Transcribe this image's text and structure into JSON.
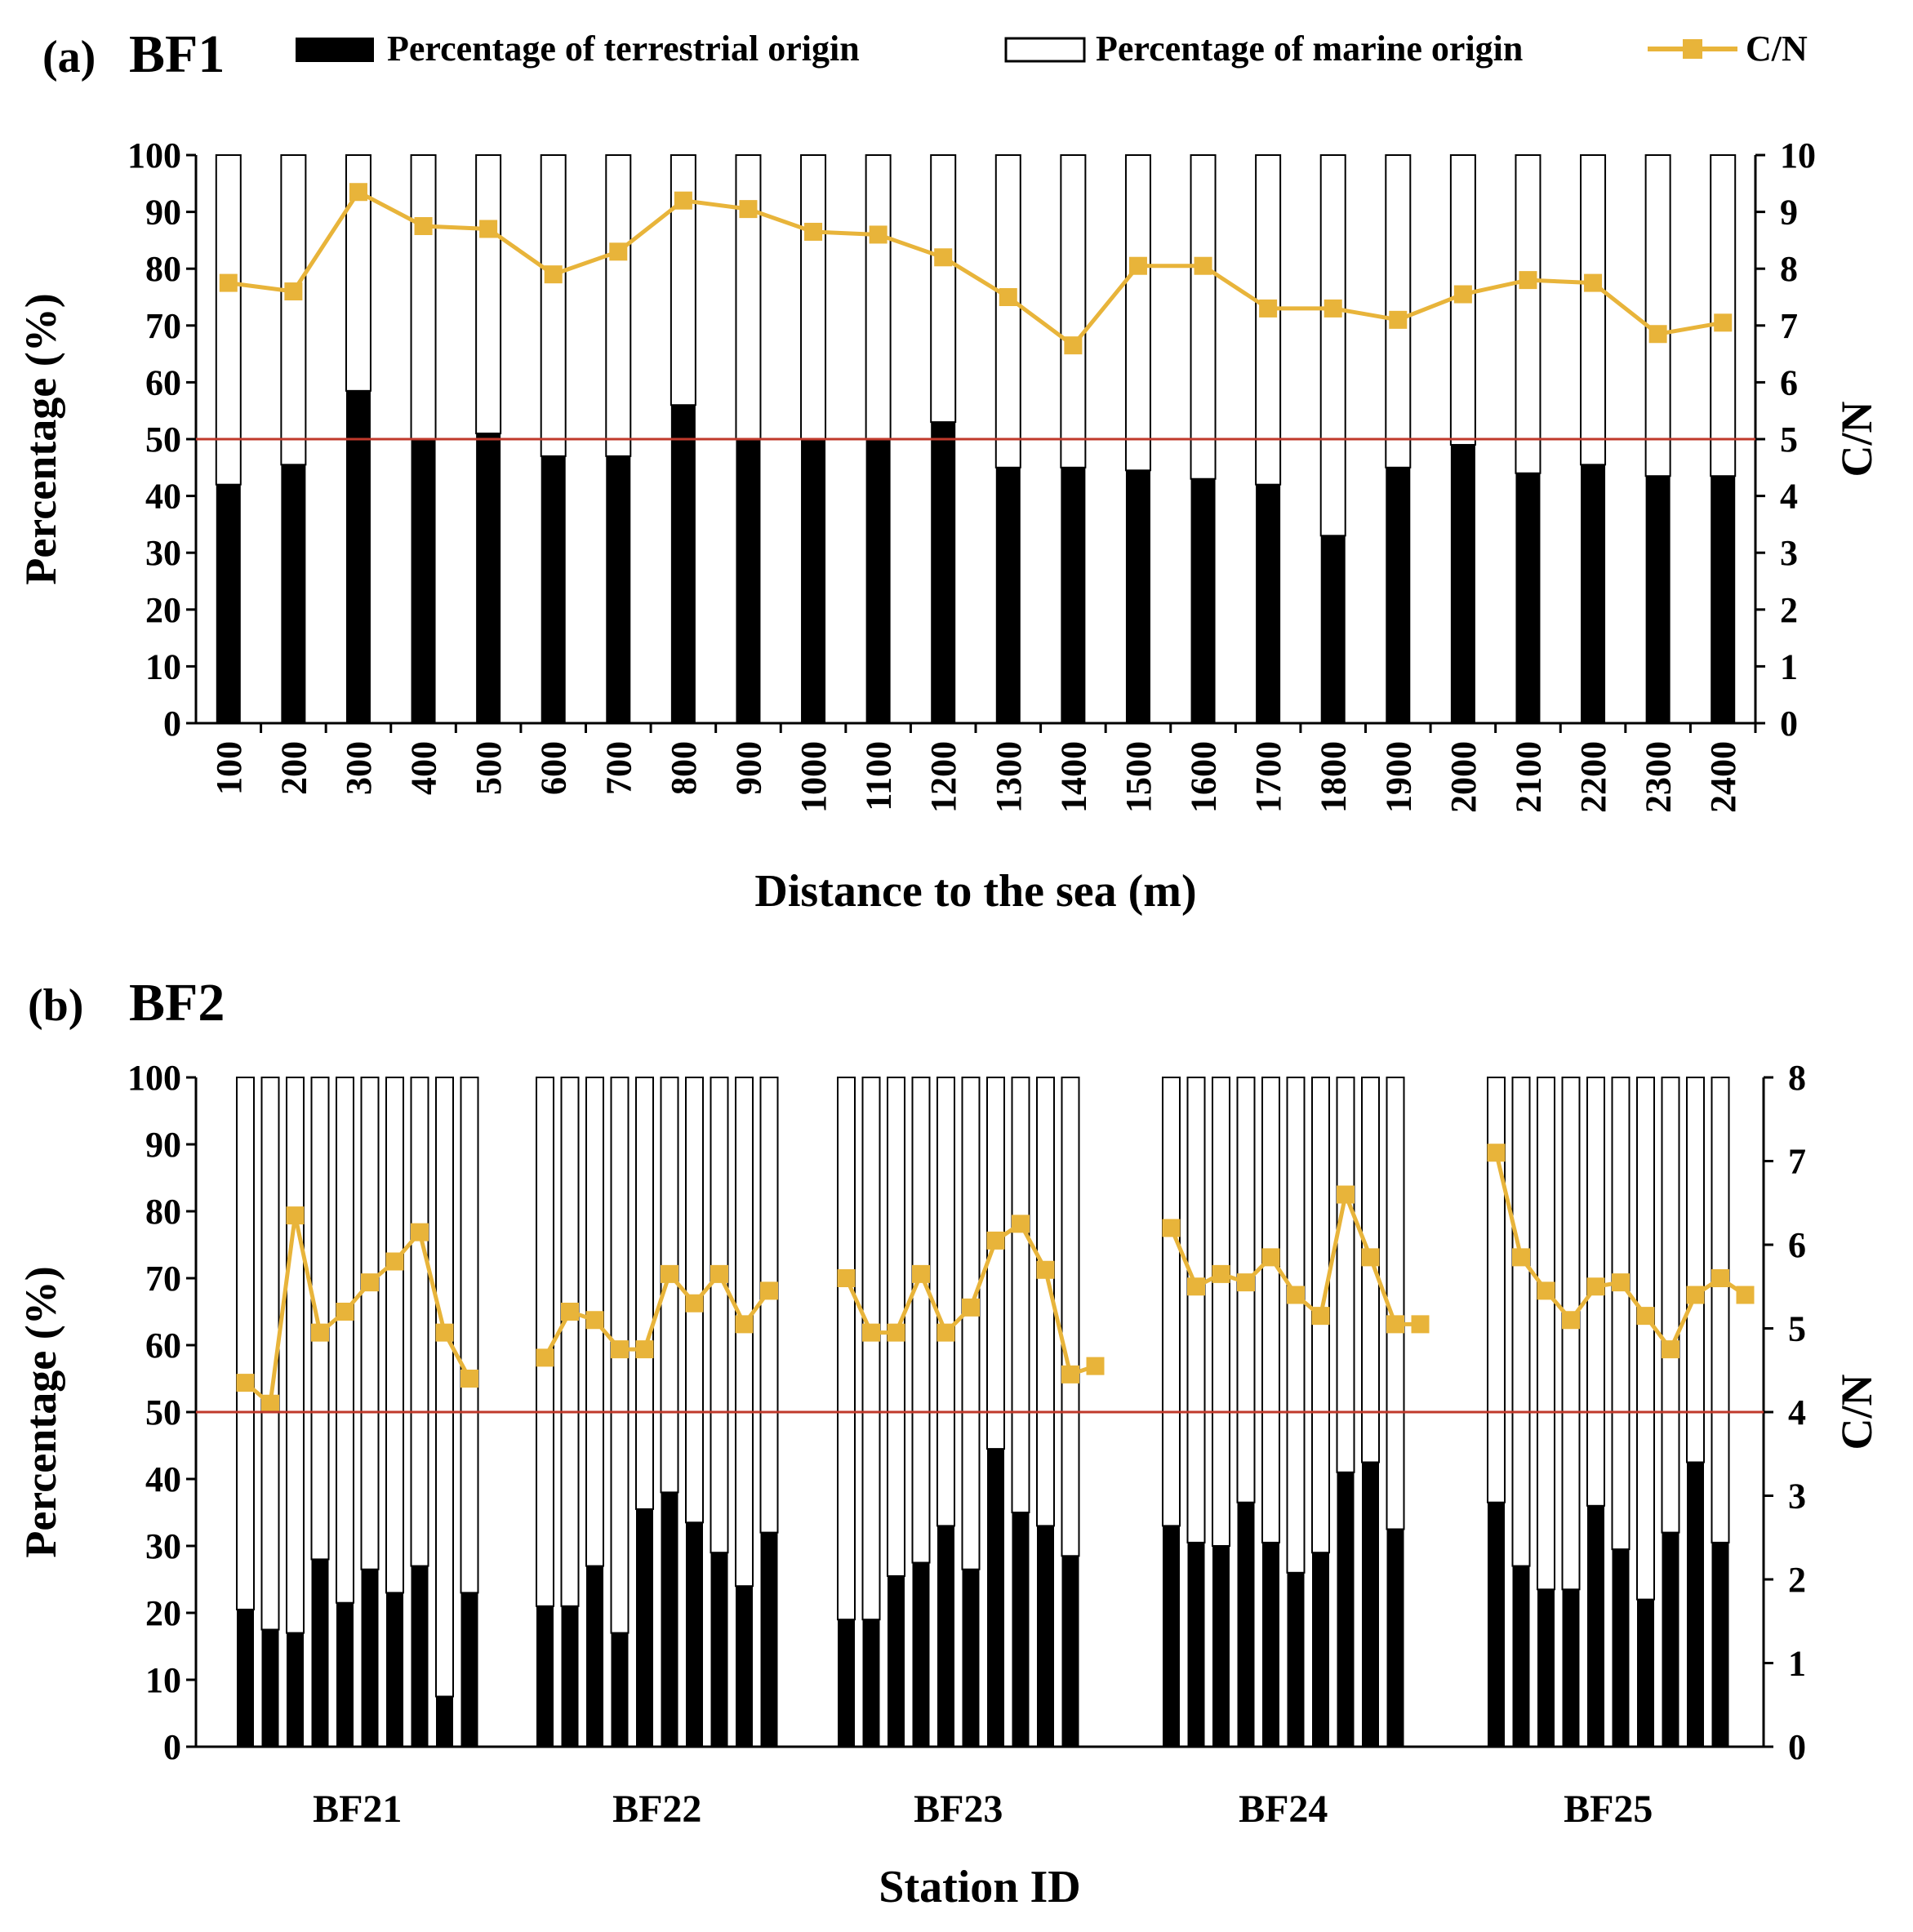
{
  "legend": {
    "terrestrial": "Percentage of terrestrial origin",
    "marine": "Percentage of marine origin",
    "cn": "C/N"
  },
  "colors": {
    "terrestrial": "#000000",
    "marine": "#ffffff",
    "cn": "#e8b43a",
    "reference": "#c0392b"
  },
  "chart_data": [
    {
      "type": "bar",
      "panel": "(a)",
      "title": "BF1",
      "xlabel": "Distance to the sea (m)",
      "ylabel": "Percentage (%)",
      "y2label": "C/N",
      "ylim": [
        0,
        100
      ],
      "y2lim": [
        0,
        10
      ],
      "yticks": [
        0,
        10,
        20,
        30,
        40,
        50,
        60,
        70,
        80,
        90,
        100
      ],
      "y2ticks": [
        0,
        1,
        2,
        3,
        4,
        5,
        6,
        7,
        8,
        9,
        10
      ],
      "reference_line": 50,
      "categories": [
        "100",
        "200",
        "300",
        "400",
        "500",
        "600",
        "700",
        "800",
        "900",
        "1000",
        "1100",
        "1200",
        "1300",
        "1400",
        "1500",
        "1600",
        "1700",
        "1800",
        "1900",
        "2000",
        "2100",
        "2200",
        "2300",
        "2400"
      ],
      "series": [
        {
          "name": "Percentage of terrestrial origin",
          "axis": "left",
          "values": [
            42,
            45.5,
            58.5,
            50,
            51,
            47,
            47,
            56,
            50,
            50,
            50,
            53,
            45,
            45,
            44.5,
            43,
            42,
            33,
            45,
            49,
            44,
            45.5,
            43.5,
            43.5
          ]
        },
        {
          "name": "Percentage of marine origin",
          "axis": "left",
          "values": [
            58,
            54.5,
            41.5,
            50,
            49,
            53,
            53,
            44,
            50,
            50,
            50,
            47,
            55,
            55,
            55.5,
            57,
            58,
            67,
            55,
            51,
            56,
            54.5,
            56.5,
            56.5
          ]
        },
        {
          "name": "C/N",
          "axis": "right",
          "values": [
            7.75,
            7.6,
            9.35,
            8.75,
            8.7,
            7.9,
            8.3,
            9.2,
            9.05,
            8.65,
            8.6,
            8.2,
            7.5,
            6.65,
            8.05,
            8.05,
            7.3,
            7.3,
            7.1,
            7.55,
            7.8,
            7.75,
            6.85,
            7.05
          ]
        }
      ]
    },
    {
      "type": "bar",
      "panel": "(b)",
      "title": "BF2",
      "xlabel": "Station ID",
      "ylabel": "Percentage (%)",
      "y2label": "C/N",
      "ylim": [
        0,
        100
      ],
      "y2lim": [
        0,
        8
      ],
      "yticks": [
        0,
        10,
        20,
        30,
        40,
        50,
        60,
        70,
        80,
        90,
        100
      ],
      "y2ticks": [
        0,
        1,
        2,
        3,
        4,
        5,
        6,
        7,
        8
      ],
      "reference_line": 50,
      "groups": [
        "BF21",
        "BF22",
        "BF23",
        "BF24",
        "BF25"
      ],
      "bars_per_group": 10,
      "series": [
        {
          "name": "Percentage of terrestrial origin",
          "axis": "left",
          "values": [
            [
              20.5,
              17.5,
              17,
              28,
              21.5,
              26.5,
              23,
              27,
              7.5,
              23
            ],
            [
              21,
              21,
              27,
              17,
              35.5,
              38,
              33.5,
              29,
              24,
              32
            ],
            [
              19,
              19,
              25.5,
              27.5,
              33,
              26.5,
              44.5,
              35,
              33,
              28.5
            ],
            [
              33,
              30.5,
              30,
              36.5,
              30.5,
              26,
              29,
              41,
              42.5,
              32.5
            ],
            [
              36.5,
              27,
              23.5,
              23.5,
              36,
              29.5,
              22,
              32,
              42.5,
              30.5
            ]
          ]
        },
        {
          "name": "Percentage of marine origin",
          "axis": "left",
          "values": [
            [
              79.5,
              82.5,
              83,
              72,
              78.5,
              73.5,
              77,
              73,
              92.5,
              77
            ],
            [
              79,
              79,
              73,
              83,
              64.5,
              62,
              66.5,
              71,
              76,
              68
            ],
            [
              81,
              81,
              74.5,
              72.5,
              67,
              73.5,
              55.5,
              65,
              67,
              71.5
            ],
            [
              67,
              69.5,
              70,
              63.5,
              69.5,
              74,
              71,
              59,
              57.5,
              67.5
            ],
            [
              63.5,
              73,
              76.5,
              76.5,
              64,
              70.5,
              78,
              68,
              57.5,
              69.5
            ]
          ]
        },
        {
          "name": "C/N",
          "axis": "right",
          "values": [
            [
              4.35,
              4.1,
              6.35,
              4.95,
              5.2,
              5.55,
              5.8,
              6.15,
              4.95,
              4.4
            ],
            [
              4.65,
              5.2,
              5.1,
              4.75,
              4.75,
              5.65,
              5.3,
              5.65,
              5.05,
              5.45
            ],
            [
              5.6,
              4.95,
              4.95,
              5.65,
              4.95,
              5.25,
              6.05,
              6.25,
              5.7,
              4.45
            ],
            [
              6.2,
              5.5,
              5.65,
              5.55,
              5.85,
              5.4,
              5.15,
              6.6,
              5.85,
              5.05
            ],
            [
              7.1,
              5.85,
              5.45,
              5.1,
              5.5,
              5.55,
              5.15,
              4.75,
              5.4,
              5.6
            ]
          ]
        }
      ],
      "cn_extra": [
        null,
        null,
        4.55,
        5.05,
        5.4
      ]
    }
  ]
}
